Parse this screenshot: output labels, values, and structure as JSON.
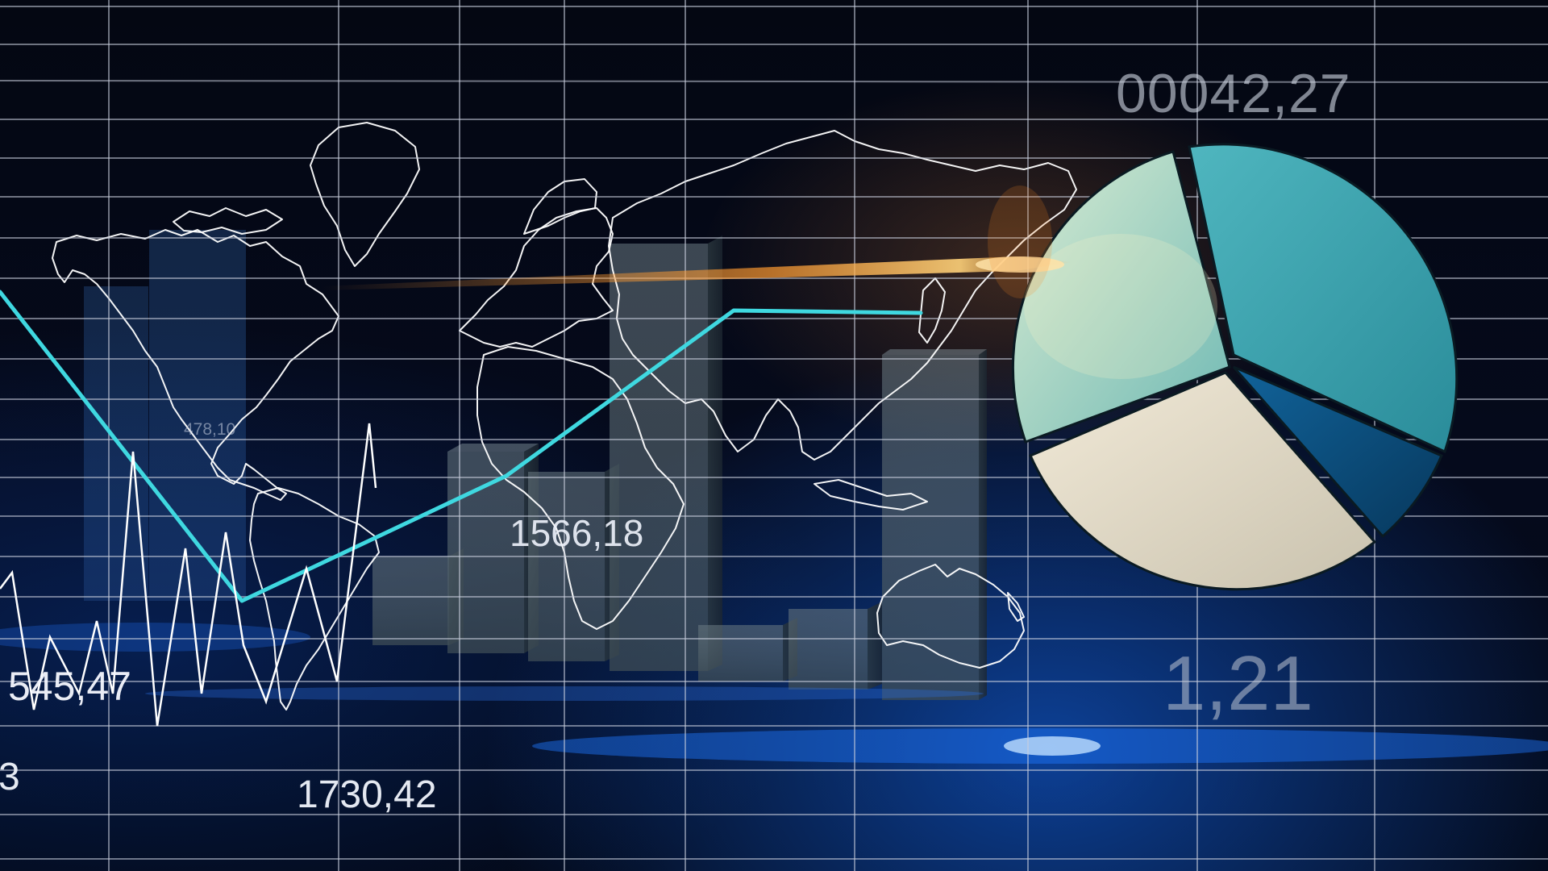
{
  "labels": {
    "top_right": "00042,27",
    "center": "1566,18",
    "left": "545,47",
    "left_edge": "3",
    "bottom": "1730,42",
    "bottom_right": "1,21",
    "small_map": "478,10"
  },
  "colors": {
    "background": "#050814",
    "grid": "#c8cedc",
    "trend_line": "#3fd8e0",
    "zigzag_line": "#ffffff",
    "bar_fill": "#55666f",
    "map_outline": "#ffffff",
    "pie_teal": "#3aa3ad",
    "pie_light_teal": "#7cc4bf",
    "pie_cream": "#e3dccb",
    "pie_dark_blue": "#0d4f7c",
    "orange_flare": "#ff9a30",
    "blue_glow": "#1e78ff"
  },
  "decor": {
    "map": "world-map-outline",
    "flare": "orange-lens-flare"
  }
}
